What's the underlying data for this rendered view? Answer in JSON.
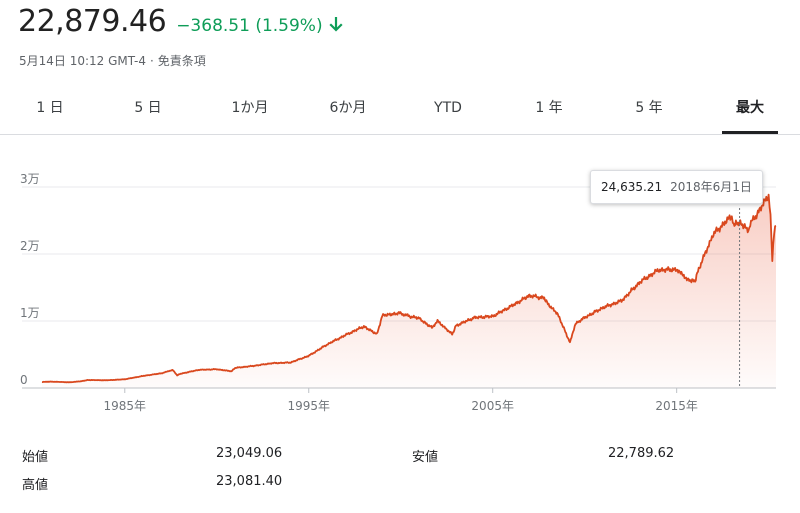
{
  "header": {
    "price": "22,879.46",
    "change": "−368.51 (1.59%)",
    "change_color": "#0f9d58",
    "change_icon": "arrow-down-icon",
    "timestamp": "5月14日 10:12 GMT-4",
    "separator": "·",
    "disclaimer": "免責条項"
  },
  "tabs": [
    {
      "label": "1 日"
    },
    {
      "label": "5 日"
    },
    {
      "label": "1か月"
    },
    {
      "label": "6か月"
    },
    {
      "label": "YTD"
    },
    {
      "label": "1 年"
    },
    {
      "label": "5 年"
    },
    {
      "label": "最大",
      "active": true
    }
  ],
  "tooltip": {
    "value": "24,635.21",
    "date": "2018年6月1日"
  },
  "stats": {
    "open_label": "始値",
    "open_value": "23,049.06",
    "high_label": "高値",
    "high_value": "23,081.40",
    "low_label": "安値",
    "low_value": "22,789.62"
  },
  "chart_data": {
    "type": "area",
    "line_color": "#d9481e",
    "grid": true,
    "ylim": [
      0,
      30000
    ],
    "xlim": [
      1980.5,
      2020.4
    ],
    "y_ticks": [
      {
        "value": 0,
        "label": "0"
      },
      {
        "value": 10000,
        "label": "1万"
      },
      {
        "value": 20000,
        "label": "2万"
      },
      {
        "value": 30000,
        "label": "3万"
      }
    ],
    "x_ticks": [
      {
        "value": 1985,
        "label": "1985年"
      },
      {
        "value": 1995,
        "label": "1995年"
      },
      {
        "value": 2005,
        "label": "2005年"
      },
      {
        "value": 2015,
        "label": "2015年"
      }
    ],
    "highlight": {
      "x": 2018.42,
      "y": 24635.21
    },
    "series": [
      {
        "x": [
          1980.5,
          1981,
          1982,
          1982.6,
          1983,
          1984,
          1985,
          1986,
          1987,
          1987.6,
          1987.85,
          1988,
          1989,
          1990,
          1990.8,
          1991,
          1992,
          1993,
          1994,
          1995,
          1996,
          1997,
          1998,
          1998.7,
          1999,
          1999.9,
          2000.5,
          2001,
          2001.7,
          2002,
          2002.8,
          2003,
          2004,
          2005,
          2006,
          2007,
          2007.8,
          2008,
          2008.5,
          2009.2,
          2009.5,
          2010,
          2011,
          2012,
          2013,
          2014,
          2015,
          2015.6,
          2016,
          2016.2,
          2017,
          2018,
          2018.1,
          2018.42,
          2018.9,
          2019,
          2019.5,
          2020,
          2020.1,
          2020.2,
          2020.3,
          2020.4
        ],
        "y": [
          900,
          950,
          850,
          1000,
          1200,
          1150,
          1300,
          1800,
          2200,
          2700,
          1900,
          2100,
          2700,
          2800,
          2500,
          3000,
          3300,
          3700,
          3800,
          4800,
          6500,
          7900,
          9200,
          8000,
          10800,
          11200,
          10700,
          10400,
          9000,
          10000,
          8000,
          9300,
          10500,
          10700,
          12200,
          13800,
          13400,
          12500,
          11200,
          6800,
          9600,
          10500,
          12000,
          13000,
          15800,
          17600,
          17700,
          16200,
          16000,
          17800,
          23000,
          25700,
          24500,
          24635,
          23500,
          24500,
          26500,
          28800,
          26000,
          19200,
          23500,
          24200
        ]
      }
    ]
  }
}
